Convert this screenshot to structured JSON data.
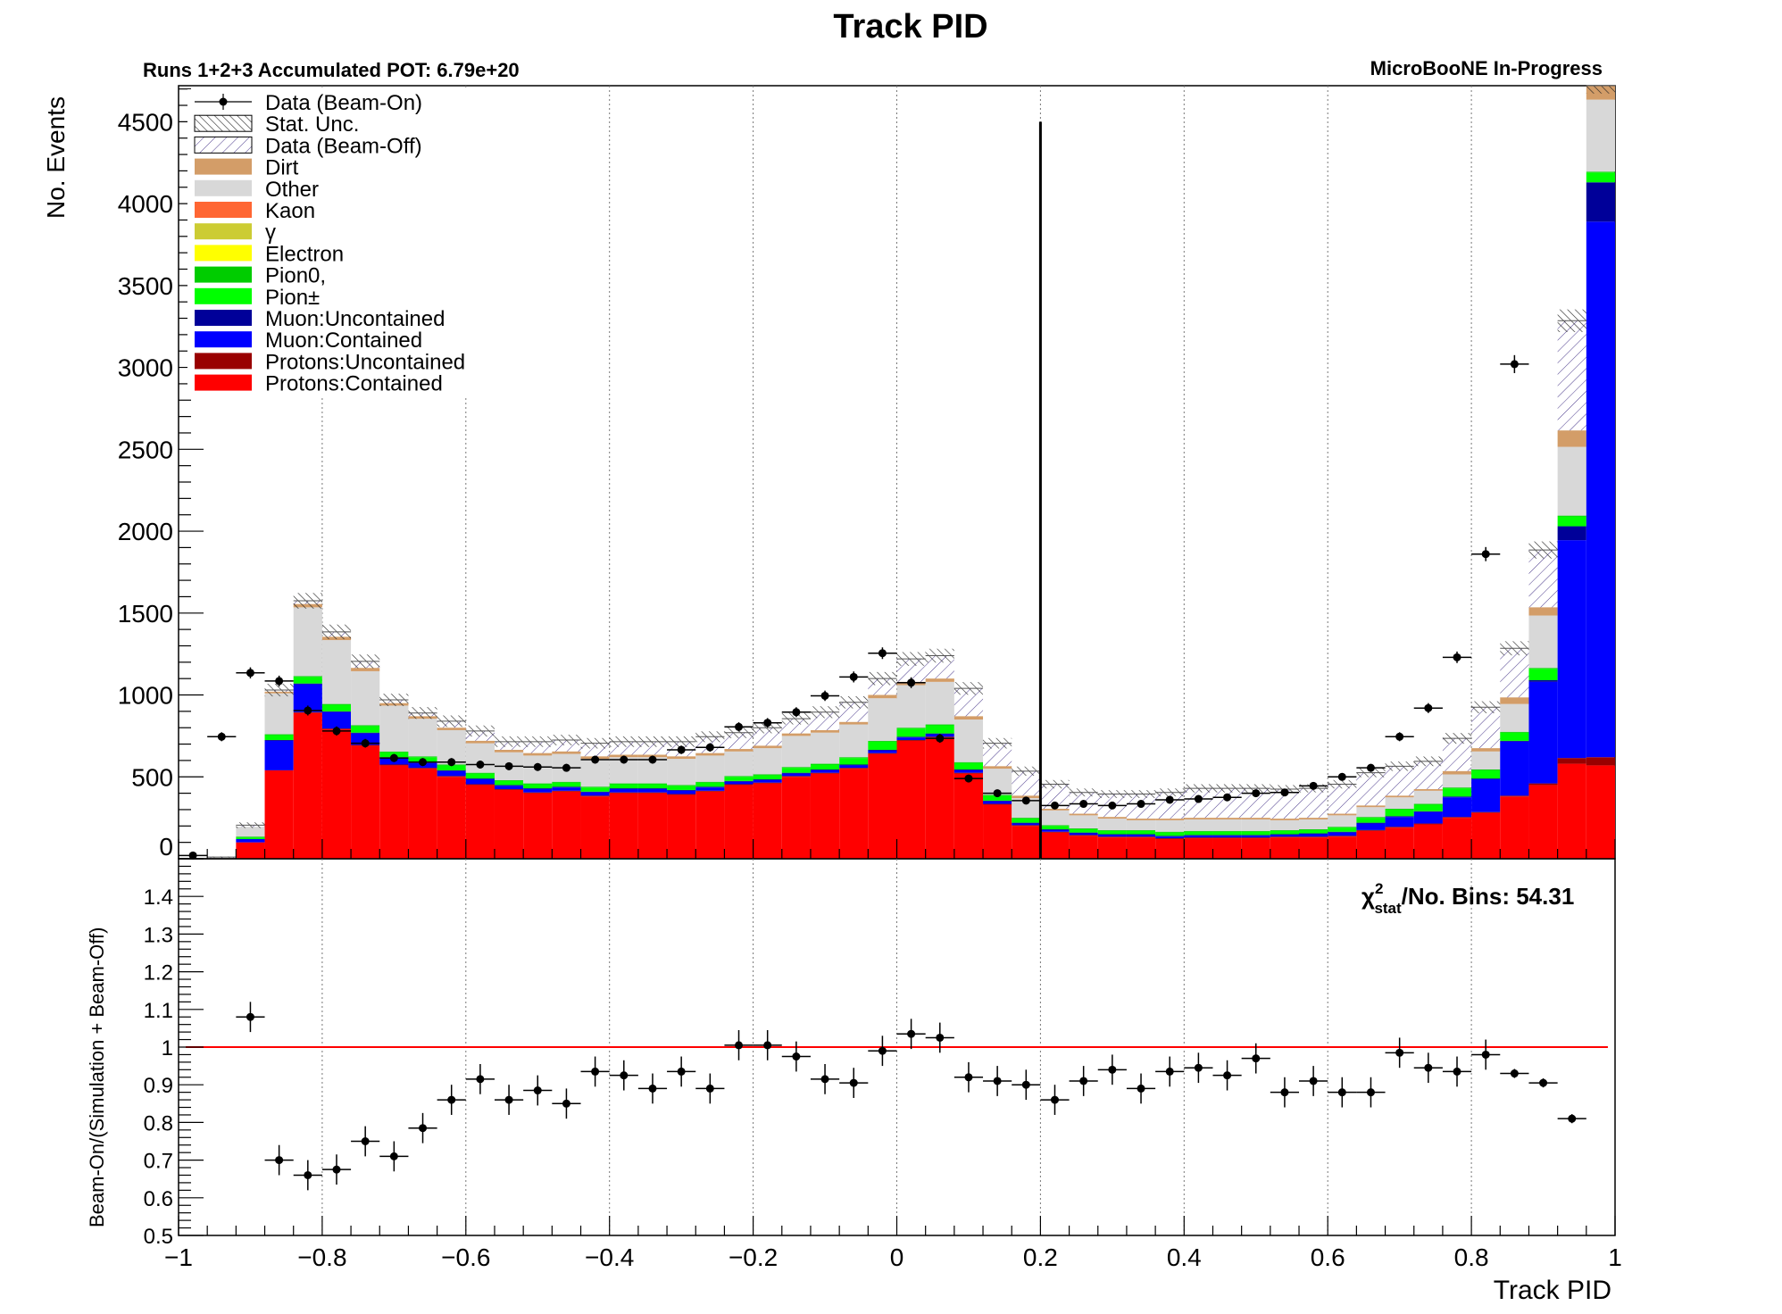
{
  "chart_data": {
    "type": "bar",
    "title": "Track PID",
    "subtitle_left": "Runs 1+2+3 Accumulated POT: 6.79e+20",
    "subtitle_right": "MicroBooNE In-Progress",
    "xlabel": "Track PID",
    "ylabel": "No. Events",
    "ratio_ylabel": "Beam-On/(Simulation + Beam-Off)",
    "chi2_sym": "χ",
    "chi2_sup": "2",
    "chi2_sub": "stat",
    "chi2_rest": "/No. Bins: 54.31",
    "xlim": [
      -1,
      1
    ],
    "ylim": [
      0,
      4720
    ],
    "ratio_ylim": [
      0.5,
      1.5
    ],
    "cut_line_x": 0.2,
    "grid": "vertical dotted",
    "legend_position": "top-left",
    "xticks": [
      "−1",
      "−0.8",
      "−0.6",
      "−0.4",
      "−0.2",
      "0",
      "0.2",
      "0.4",
      "0.6",
      "0.8",
      "1"
    ],
    "yticks": [
      "0",
      "500",
      "1000",
      "1500",
      "2000",
      "2500",
      "3000",
      "3500",
      "4000",
      "4500"
    ],
    "ratio_yticks": [
      "0.5",
      "0.6",
      "0.7",
      "0.8",
      "0.9",
      "1",
      "1.1",
      "1.2",
      "1.3",
      "1.4"
    ],
    "legend": [
      {
        "label": "Data (Beam-On)",
        "kind": "data"
      },
      {
        "label": "Stat. Unc.",
        "kind": "hatch-stat"
      },
      {
        "label": "Data (Beam-Off)",
        "kind": "hatch-off"
      },
      {
        "label": "Dirt",
        "kind": "fill",
        "color": "#d39d68"
      },
      {
        "label": "Other",
        "kind": "fill",
        "color": "#d8d8d8"
      },
      {
        "label": "Kaon",
        "kind": "fill",
        "color": "#ff6633"
      },
      {
        "label": "γ",
        "kind": "fill",
        "color": "#cccc33"
      },
      {
        "label": "Electron",
        "kind": "fill",
        "color": "#ffff00"
      },
      {
        "label": "Pion0,",
        "kind": "fill",
        "color": "#00cc00"
      },
      {
        "label": "Pion±",
        "kind": "fill",
        "color": "#00ff00"
      },
      {
        "label": "Muon:Uncontained",
        "kind": "fill",
        "color": "#000099"
      },
      {
        "label": "Muon:Contained",
        "kind": "fill",
        "color": "#0000ff"
      },
      {
        "label": "Protons:Uncontained",
        "kind": "fill",
        "color": "#990000"
      },
      {
        "label": "Protons:Contained",
        "kind": "fill",
        "color": "#ff0000"
      }
    ],
    "bins_low": [
      -1.0,
      -0.96,
      -0.92,
      -0.88,
      -0.84,
      -0.8,
      -0.76,
      -0.72,
      -0.68,
      -0.64,
      -0.6,
      -0.56,
      -0.52,
      -0.48,
      -0.44,
      -0.4,
      -0.36,
      -0.32,
      -0.28,
      -0.24,
      -0.2,
      -0.16,
      -0.12,
      -0.08,
      -0.04,
      0.0,
      0.04,
      0.08,
      0.12,
      0.16,
      0.2,
      0.24,
      0.28,
      0.32,
      0.36,
      0.4,
      0.44,
      0.48,
      0.52,
      0.56,
      0.6,
      0.64,
      0.68,
      0.72,
      0.76,
      0.8,
      0.84,
      0.88,
      0.92,
      0.96
    ],
    "series": [
      {
        "name": "Protons:Contained",
        "color": "#ff0000",
        "values": [
          0,
          0,
          100,
          540,
          890,
          790,
          690,
          570,
          550,
          500,
          450,
          420,
          400,
          410,
          380,
          400,
          400,
          390,
          410,
          450,
          460,
          500,
          520,
          550,
          640,
          720,
          740,
          520,
          330,
          200,
          160,
          140,
          130,
          130,
          120,
          125,
          125,
          125,
          130,
          130,
          135,
          170,
          190,
          210,
          250,
          280,
          380,
          450,
          580,
          570
        ]
      },
      {
        "name": "Protons:Uncontained",
        "color": "#990000",
        "values": [
          0,
          0,
          0,
          0,
          5,
          5,
          5,
          5,
          5,
          5,
          5,
          5,
          5,
          5,
          5,
          5,
          5,
          5,
          5,
          5,
          5,
          5,
          5,
          5,
          5,
          5,
          5,
          5,
          5,
          5,
          5,
          5,
          5,
          5,
          5,
          5,
          5,
          5,
          5,
          5,
          5,
          5,
          5,
          5,
          5,
          5,
          5,
          10,
          35,
          50
        ]
      },
      {
        "name": "Muon:Contained",
        "color": "#0000ff",
        "values": [
          0,
          0,
          20,
          180,
          170,
          100,
          70,
          40,
          30,
          30,
          30,
          20,
          20,
          20,
          20,
          20,
          20,
          20,
          20,
          15,
          15,
          15,
          15,
          15,
          15,
          15,
          15,
          15,
          15,
          10,
          10,
          10,
          10,
          10,
          10,
          10,
          10,
          10,
          10,
          15,
          20,
          40,
          60,
          70,
          120,
          200,
          330,
          620,
          1330,
          3270
        ]
      },
      {
        "name": "Muon:Uncontained",
        "color": "#000099",
        "values": [
          0,
          0,
          0,
          5,
          5,
          5,
          5,
          5,
          5,
          5,
          5,
          5,
          5,
          5,
          5,
          5,
          5,
          5,
          5,
          5,
          5,
          5,
          5,
          5,
          5,
          5,
          5,
          5,
          5,
          5,
          5,
          5,
          5,
          5,
          5,
          5,
          5,
          5,
          5,
          5,
          5,
          5,
          5,
          5,
          5,
          5,
          5,
          10,
          85,
          240
        ]
      },
      {
        "name": "Pion±",
        "color": "#00ff00",
        "values": [
          0,
          0,
          10,
          30,
          40,
          40,
          40,
          30,
          30,
          30,
          30,
          25,
          25,
          25,
          25,
          25,
          25,
          25,
          25,
          25,
          25,
          30,
          30,
          40,
          50,
          50,
          50,
          40,
          30,
          25,
          20,
          20,
          20,
          20,
          20,
          20,
          20,
          20,
          20,
          20,
          25,
          30,
          40,
          40,
          50,
          50,
          50,
          70,
          60,
          60
        ]
      },
      {
        "name": "Pion0,",
        "color": "#00cc00",
        "values": [
          0,
          0,
          5,
          5,
          5,
          5,
          5,
          5,
          5,
          5,
          5,
          5,
          5,
          5,
          5,
          5,
          5,
          5,
          5,
          5,
          5,
          5,
          5,
          5,
          5,
          5,
          5,
          5,
          5,
          5,
          5,
          5,
          5,
          5,
          5,
          5,
          5,
          5,
          5,
          5,
          5,
          5,
          5,
          5,
          5,
          5,
          5,
          5,
          5,
          5
        ]
      },
      {
        "name": "Electron",
        "color": "#ffff00",
        "values": [
          0,
          0,
          0,
          0,
          0,
          0,
          0,
          0,
          0,
          0,
          0,
          0,
          0,
          0,
          0,
          0,
          0,
          0,
          0,
          0,
          0,
          0,
          0,
          0,
          0,
          0,
          0,
          0,
          0,
          0,
          0,
          0,
          0,
          0,
          0,
          0,
          0,
          0,
          0,
          0,
          0,
          0,
          0,
          0,
          0,
          0,
          0,
          0,
          0,
          0
        ]
      },
      {
        "name": "γ",
        "color": "#cccc33",
        "values": [
          0,
          0,
          0,
          0,
          0,
          0,
          0,
          0,
          0,
          0,
          0,
          0,
          0,
          0,
          0,
          0,
          0,
          0,
          0,
          0,
          0,
          0,
          0,
          0,
          0,
          0,
          0,
          0,
          0,
          0,
          0,
          0,
          0,
          0,
          0,
          0,
          0,
          0,
          0,
          0,
          0,
          0,
          0,
          0,
          0,
          0,
          0,
          0,
          0,
          0
        ]
      },
      {
        "name": "Kaon",
        "color": "#ff6633",
        "values": [
          0,
          0,
          0,
          0,
          0,
          0,
          0,
          0,
          0,
          0,
          0,
          0,
          0,
          0,
          0,
          0,
          0,
          0,
          0,
          0,
          0,
          0,
          0,
          0,
          0,
          0,
          0,
          0,
          0,
          0,
          0,
          0,
          0,
          0,
          0,
          0,
          0,
          0,
          0,
          0,
          0,
          0,
          0,
          0,
          0,
          0,
          0,
          0,
          0,
          0
        ]
      },
      {
        "name": "Other",
        "color": "#d8d8d8",
        "values": [
          0,
          0,
          60,
          250,
          420,
          390,
          330,
          280,
          230,
          210,
          180,
          170,
          170,
          170,
          170,
          160,
          160,
          160,
          160,
          150,
          160,
          190,
          190,
          200,
          260,
          260,
          260,
          260,
          160,
          120,
          90,
          80,
          70,
          60,
          70,
          70,
          70,
          70,
          60,
          60,
          70,
          60,
          70,
          80,
          80,
          110,
          170,
          320,
          420,
          440
        ]
      },
      {
        "name": "Dirt",
        "color": "#d39d68",
        "values": [
          0,
          0,
          0,
          10,
          20,
          20,
          20,
          15,
          15,
          15,
          15,
          15,
          15,
          15,
          15,
          15,
          15,
          15,
          15,
          15,
          15,
          15,
          15,
          15,
          20,
          20,
          20,
          20,
          15,
          15,
          10,
          10,
          10,
          10,
          10,
          10,
          10,
          10,
          10,
          10,
          10,
          10,
          10,
          10,
          20,
          20,
          40,
          50,
          100,
          120
        ]
      },
      {
        "name": "Data (Beam-Off)",
        "values": [
          0,
          10,
          10,
          10,
          20,
          30,
          40,
          20,
          20,
          40,
          60,
          50,
          70,
          70,
          80,
          80,
          80,
          90,
          100,
          100,
          110,
          90,
          110,
          120,
          100,
          140,
          140,
          170,
          140,
          150,
          150,
          130,
          140,
          150,
          160,
          180,
          180,
          180,
          180,
          180,
          180,
          200,
          180,
          170,
          200,
          250,
          300,
          350,
          670,
          0
        ]
      }
    ],
    "data_beam_on": [
      20,
      745,
      1135,
      1085,
      905,
      780,
      705,
      615,
      590,
      590,
      575,
      565,
      560,
      555,
      605,
      605,
      605,
      665,
      680,
      805,
      830,
      895,
      995,
      1110,
      1255,
      1075,
      735,
      490,
      400,
      355,
      325,
      335,
      325,
      335,
      360,
      365,
      375,
      400,
      405,
      445,
      500,
      555,
      745,
      920,
      1230,
      1860,
      3020,
      null,
      null,
      null
    ],
    "ratio": [
      null,
      null,
      1.08,
      0.7,
      0.66,
      0.675,
      0.75,
      0.71,
      0.785,
      0.86,
      0.915,
      0.86,
      0.885,
      0.85,
      0.935,
      0.925,
      0.89,
      0.935,
      0.89,
      1.005,
      1.005,
      0.975,
      0.915,
      0.905,
      0.99,
      1.035,
      1.025,
      0.92,
      0.91,
      0.9,
      0.86,
      0.91,
      0.94,
      0.89,
      0.935,
      0.945,
      0.925,
      0.97,
      0.88,
      0.91,
      0.88,
      0.88,
      0.985,
      0.945,
      0.935,
      0.98,
      0.93,
      0.905,
      0.81,
      null
    ]
  }
}
